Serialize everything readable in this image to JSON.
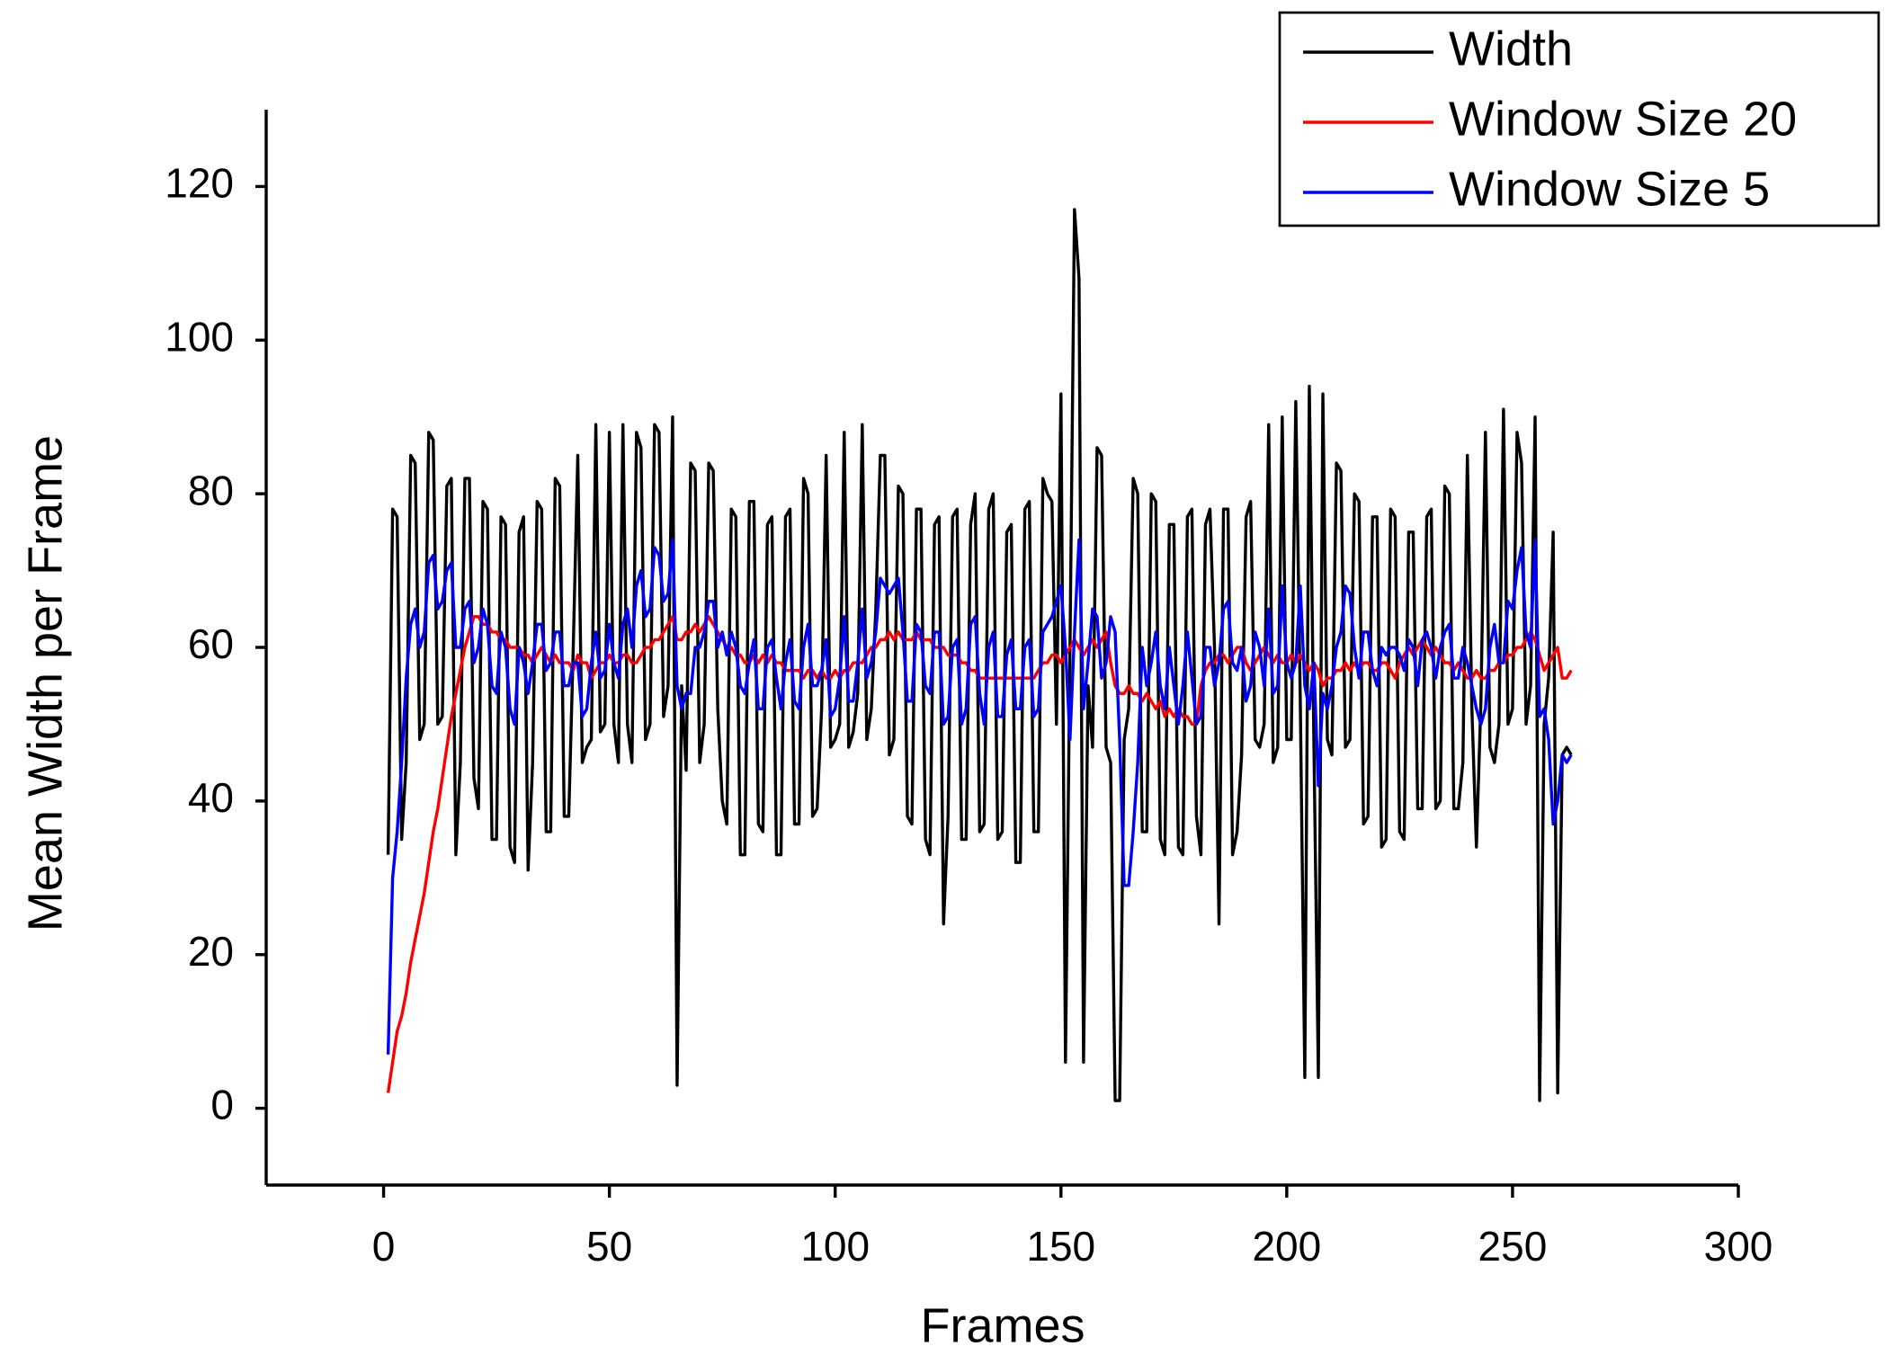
{
  "chart_data": {
    "type": "line",
    "x_label": "Frames",
    "y_label": "Mean Width per Frame",
    "x": [
      1,
      2,
      3,
      4,
      5,
      6,
      7,
      8,
      9,
      10,
      11,
      12,
      13,
      14,
      15,
      16,
      17,
      18,
      19,
      20,
      21,
      22,
      23,
      24,
      25,
      26,
      27,
      28,
      29,
      30,
      31,
      32,
      33,
      34,
      35,
      36,
      37,
      38,
      39,
      40,
      41,
      42,
      43,
      44,
      45,
      46,
      47,
      48,
      49,
      50,
      51,
      52,
      53,
      54,
      55,
      56,
      57,
      58,
      59,
      60,
      61,
      62,
      63,
      64,
      65,
      66,
      67,
      68,
      69,
      70,
      71,
      72,
      73,
      74,
      75,
      76,
      77,
      78,
      79,
      80,
      81,
      82,
      83,
      84,
      85,
      86,
      87,
      88,
      89,
      90,
      91,
      92,
      93,
      94,
      95,
      96,
      97,
      98,
      99,
      100,
      101,
      102,
      103,
      104,
      105,
      106,
      107,
      108,
      109,
      110,
      111,
      112,
      113,
      114,
      115,
      116,
      117,
      118,
      119,
      120,
      121,
      122,
      123,
      124,
      125,
      126,
      127,
      128,
      129,
      130,
      131,
      132,
      133,
      134,
      135,
      136,
      137,
      138,
      139,
      140,
      141,
      142,
      143,
      144,
      145,
      146,
      147,
      148,
      149,
      150,
      151,
      152,
      153,
      154,
      155,
      156,
      157,
      158,
      159,
      160,
      161,
      162,
      163,
      164,
      165,
      166,
      167,
      168,
      169,
      170,
      171,
      172,
      173,
      174,
      175,
      176,
      177,
      178,
      179,
      180,
      181,
      182,
      183,
      184,
      185,
      186,
      187,
      188,
      189,
      190,
      191,
      192,
      193,
      194,
      195,
      196,
      197,
      198,
      199,
      200,
      201,
      202,
      203,
      204,
      205,
      206,
      207,
      208,
      209,
      210,
      211,
      212,
      213,
      214,
      215,
      216,
      217,
      218,
      219,
      220,
      221,
      222,
      223,
      224,
      225,
      226,
      227,
      228,
      229,
      230,
      231,
      232,
      233,
      234,
      235,
      236,
      237,
      238,
      239,
      240,
      241,
      242,
      243,
      244,
      245,
      246,
      247,
      248,
      249,
      250,
      251,
      252,
      253,
      254,
      255,
      256,
      257,
      258,
      259,
      260,
      261,
      262,
      263
    ],
    "series": [
      {
        "name": "Width",
        "color": "#000000",
        "values": [
          33,
          78,
          77,
          35,
          45,
          85,
          84,
          48,
          50,
          88,
          87,
          50,
          51,
          81,
          82,
          33,
          45,
          82,
          82,
          43,
          39,
          79,
          78,
          35,
          35,
          77,
          76,
          34,
          32,
          75,
          77,
          31,
          45,
          79,
          78,
          36,
          36,
          82,
          81,
          38,
          38,
          60,
          85,
          45,
          47,
          48,
          89,
          49,
          50,
          88,
          50,
          45,
          89,
          50,
          45,
          88,
          86,
          48,
          50,
          89,
          88,
          51,
          55,
          90,
          3,
          55,
          44,
          84,
          83,
          45,
          50,
          84,
          83,
          52,
          40,
          37,
          78,
          77,
          33,
          33,
          79,
          79,
          37,
          36,
          76,
          77,
          33,
          33,
          77,
          78,
          37,
          37,
          82,
          80,
          38,
          39,
          52,
          85,
          47,
          48,
          50,
          88,
          47,
          49,
          54,
          89,
          48,
          52,
          65,
          85,
          85,
          46,
          48,
          81,
          80,
          38,
          37,
          78,
          78,
          35,
          33,
          76,
          77,
          24,
          38,
          77,
          78,
          35,
          35,
          76,
          80,
          36,
          37,
          78,
          80,
          35,
          36,
          75,
          76,
          32,
          32,
          78,
          79,
          36,
          36,
          82,
          80,
          79,
          50,
          93,
          6,
          60,
          117,
          108,
          6,
          55,
          47,
          86,
          85,
          47,
          45,
          1,
          1,
          48,
          52,
          82,
          80,
          36,
          36,
          80,
          79,
          35,
          33,
          76,
          76,
          34,
          33,
          77,
          78,
          38,
          33,
          76,
          78,
          60,
          24,
          78,
          78,
          33,
          36,
          46,
          77,
          79,
          48,
          47,
          50,
          89,
          45,
          47,
          90,
          48,
          48,
          92,
          53,
          4,
          94,
          48,
          4,
          93,
          48,
          46,
          84,
          83,
          47,
          48,
          80,
          79,
          37,
          38,
          77,
          77,
          34,
          35,
          78,
          77,
          36,
          35,
          75,
          75,
          39,
          39,
          77,
          78,
          39,
          40,
          81,
          80,
          39,
          39,
          45,
          85,
          52,
          34,
          53,
          88,
          47,
          45,
          50,
          91,
          50,
          52,
          88,
          84,
          50,
          55,
          90,
          1,
          50,
          56,
          75,
          2,
          46,
          47,
          46
        ]
      },
      {
        "name": "Window Size 20",
        "color": "#ff0000",
        "values": [
          2,
          6,
          10,
          12,
          15,
          19,
          22,
          25,
          28,
          32,
          36,
          39,
          43,
          47,
          51,
          54,
          57,
          60,
          62,
          64,
          64,
          63,
          63,
          62,
          62,
          61,
          61,
          60,
          60,
          60,
          59,
          59,
          58,
          59,
          60,
          59,
          58,
          59,
          58,
          58,
          58,
          57,
          59,
          58,
          58,
          56,
          57,
          58,
          58,
          59,
          58,
          58,
          59,
          59,
          58,
          58,
          59,
          60,
          60,
          61,
          61,
          62,
          63,
          64,
          61,
          61,
          62,
          62,
          63,
          62,
          63,
          64,
          63,
          62,
          61,
          60,
          60,
          59,
          59,
          58,
          58,
          59,
          58,
          59,
          58,
          59,
          58,
          58,
          57,
          57,
          57,
          57,
          56,
          57,
          57,
          56,
          57,
          56,
          56,
          57,
          56,
          57,
          57,
          58,
          58,
          58,
          59,
          60,
          60,
          61,
          61,
          62,
          61,
          62,
          61,
          61,
          61,
          62,
          61,
          61,
          61,
          60,
          60,
          60,
          59,
          59,
          59,
          58,
          58,
          57,
          57,
          56,
          56,
          56,
          56,
          56,
          56,
          56,
          56,
          56,
          56,
          56,
          56,
          56,
          57,
          58,
          58,
          59,
          59,
          58,
          59,
          60,
          61,
          60,
          59,
          60,
          61,
          60,
          61,
          62,
          58,
          55,
          54,
          54,
          55,
          54,
          54,
          53,
          54,
          53,
          52,
          53,
          51,
          52,
          51,
          52,
          51,
          51,
          50,
          50,
          55,
          57,
          58,
          58,
          59,
          59,
          58,
          59,
          60,
          60,
          58,
          57,
          58,
          59,
          60,
          59,
          58,
          59,
          58,
          58,
          59,
          58,
          59,
          58,
          57,
          58,
          57,
          55,
          56,
          56,
          57,
          57,
          58,
          57,
          58,
          57,
          58,
          58,
          57,
          57,
          58,
          58,
          57,
          56,
          58,
          59,
          60,
          59,
          60,
          61,
          60,
          59,
          60,
          59,
          58,
          58,
          57,
          58,
          57,
          56,
          56,
          57,
          56,
          56,
          57,
          57,
          58,
          58,
          59,
          59,
          60,
          60,
          61,
          62,
          61,
          59,
          57,
          58,
          59,
          60,
          56,
          56,
          57
        ]
      },
      {
        "name": "Window Size 5",
        "color": "#0000ff",
        "values": [
          7,
          30,
          36,
          45,
          56,
          63,
          65,
          60,
          62,
          71,
          72,
          65,
          66,
          70,
          71,
          60,
          60,
          65,
          66,
          58,
          60,
          65,
          63,
          55,
          54,
          62,
          60,
          52,
          50,
          60,
          58,
          54,
          58,
          63,
          63,
          57,
          58,
          62,
          62,
          55,
          55,
          58,
          58,
          51,
          52,
          58,
          62,
          56,
          57,
          63,
          58,
          56,
          63,
          65,
          60,
          68,
          70,
          64,
          65,
          73,
          72,
          66,
          67,
          74,
          55,
          52,
          54,
          54,
          60,
          60,
          62,
          66,
          66,
          60,
          62,
          59,
          62,
          60,
          55,
          54,
          58,
          61,
          52,
          52,
          60,
          61,
          56,
          52,
          58,
          61,
          53,
          52,
          60,
          63,
          55,
          55,
          57,
          61,
          51,
          52,
          56,
          64,
          53,
          53,
          58,
          65,
          56,
          58,
          62,
          69,
          68,
          67,
          68,
          69,
          62,
          53,
          53,
          63,
          62,
          55,
          54,
          62,
          62,
          50,
          51,
          60,
          61,
          50,
          52,
          63,
          64,
          54,
          50,
          60,
          62,
          51,
          51,
          59,
          61,
          52,
          52,
          60,
          61,
          51,
          52,
          62,
          63,
          64,
          66,
          68,
          60,
          48,
          62,
          74,
          52,
          58,
          65,
          64,
          56,
          58,
          64,
          62,
          48,
          29,
          29,
          36,
          45,
          60,
          55,
          58,
          62,
          55,
          52,
          60,
          55,
          50,
          55,
          62,
          56,
          50,
          51,
          60,
          60,
          55,
          58,
          65,
          66,
          58,
          57,
          60,
          53,
          55,
          62,
          60,
          55,
          65,
          54,
          55,
          68,
          58,
          56,
          58,
          68,
          55,
          52,
          58,
          42,
          54,
          52,
          55,
          60,
          62,
          68,
          67,
          60,
          56,
          62,
          62,
          57,
          55,
          60,
          59,
          60,
          60,
          59,
          57,
          61,
          60,
          55,
          61,
          62,
          60,
          56,
          60,
          62,
          63,
          56,
          56,
          60,
          58,
          55,
          52,
          50,
          52,
          60,
          63,
          58,
          58,
          66,
          65,
          70,
          73,
          62,
          60,
          74,
          51,
          52,
          48,
          37,
          40,
          46,
          45,
          46
        ]
      }
    ],
    "xlim": [
      -26,
      300
    ],
    "xticks": [
      0,
      50,
      100,
      150,
      200,
      250,
      300
    ],
    "ylim": [
      -10,
      130
    ],
    "yticks": [
      0,
      20,
      40,
      60,
      80,
      100,
      120
    ],
    "grid": false,
    "legend": "upper right"
  }
}
